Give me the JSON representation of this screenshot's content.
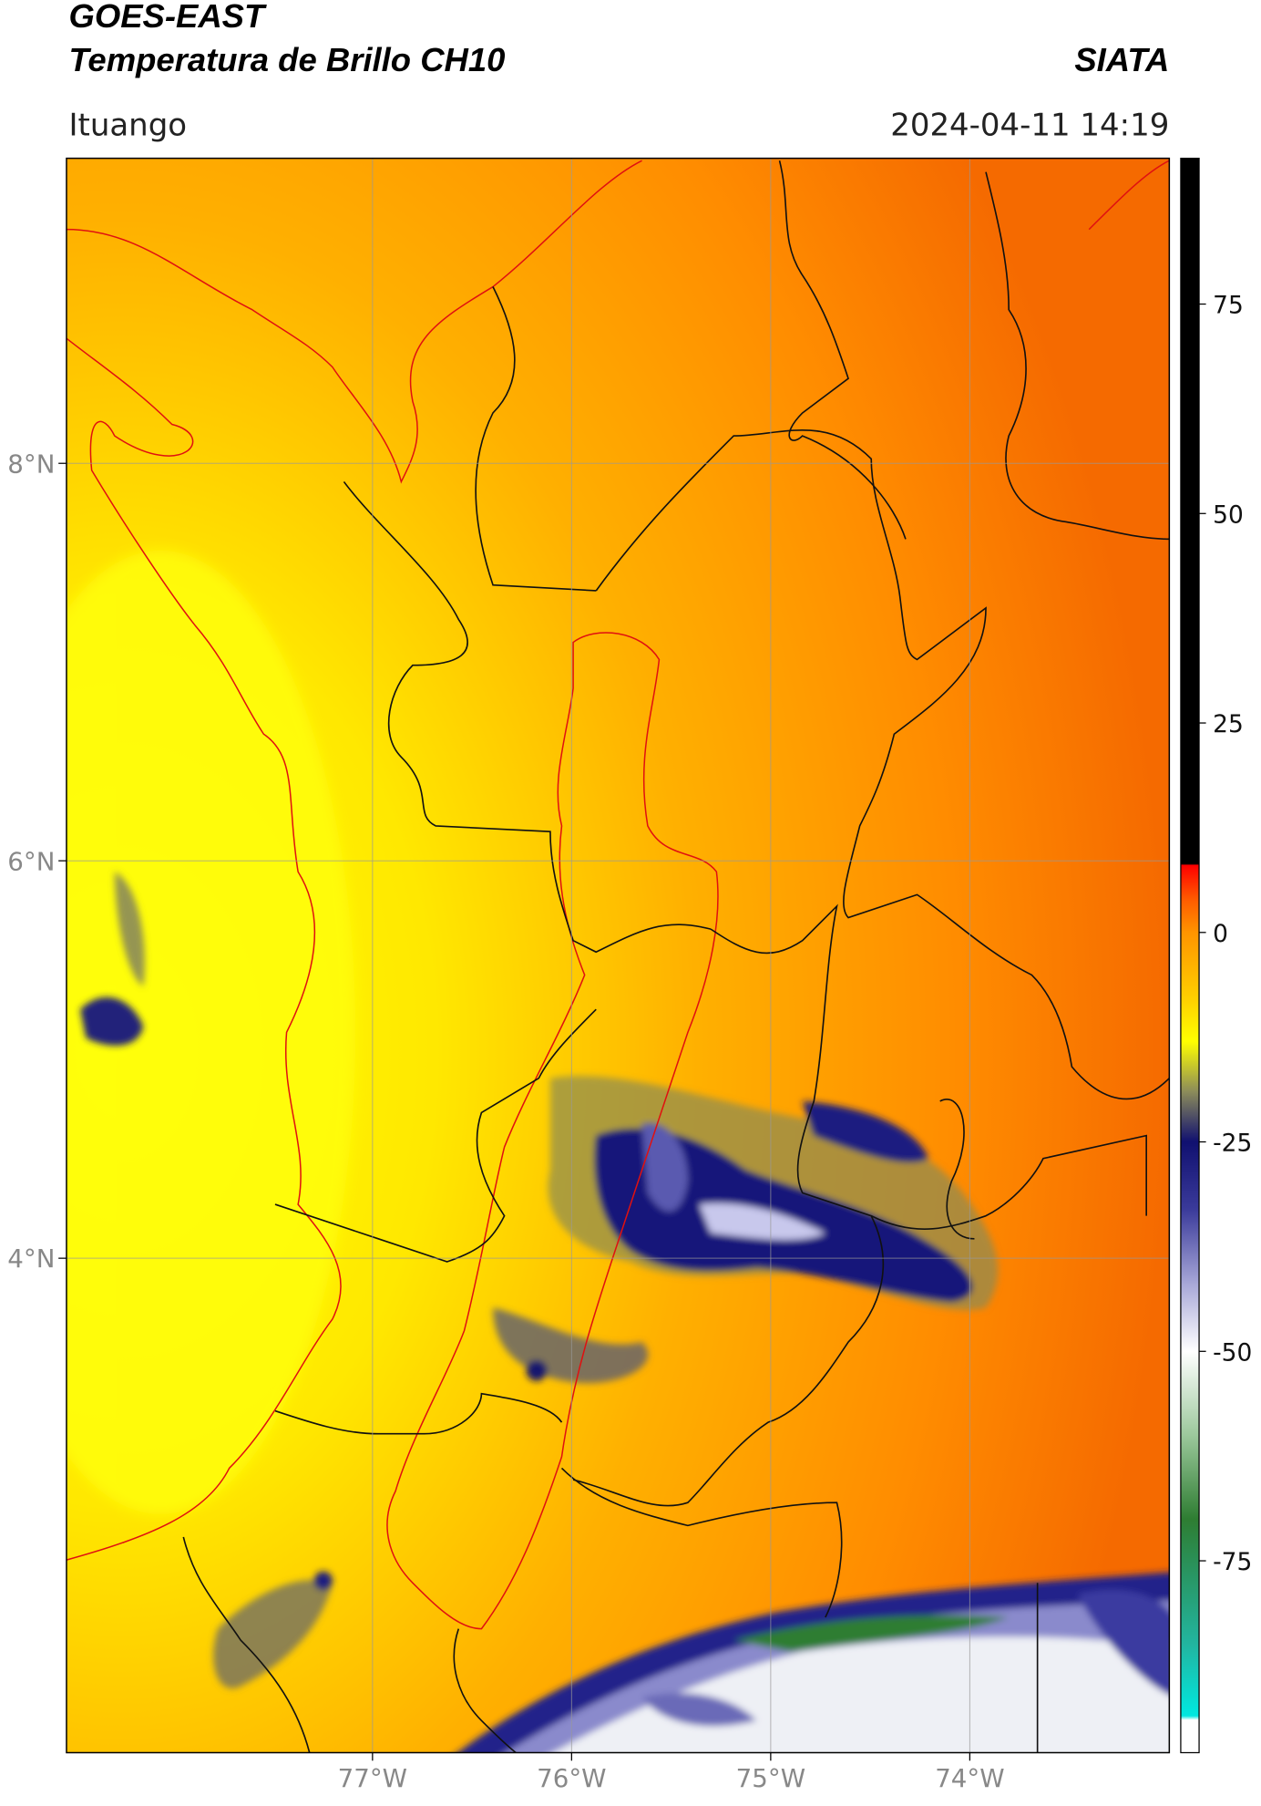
{
  "header": {
    "title": "GOES-EAST",
    "subtitle": "Temperatura de Brillo CH10",
    "source": "SIATA",
    "location": "Ituango",
    "datetime": "2024-04-11 14:19"
  },
  "map": {
    "xlim": [
      -78.537,
      -72.998
    ],
    "ylim": [
      1.512,
      9.535
    ],
    "xticks": [
      {
        "value": -77,
        "label": "77°W"
      },
      {
        "value": -76,
        "label": "76°W"
      },
      {
        "value": -75,
        "label": "75°W"
      },
      {
        "value": -74,
        "label": "74°W"
      }
    ],
    "yticks": [
      {
        "value": 4,
        "label": "4°N"
      },
      {
        "value": 6,
        "label": "6°N"
      },
      {
        "value": 8,
        "label": "8°N"
      }
    ],
    "grid": true
  },
  "colorbar": {
    "lim": [
      -97.9,
      92.4
    ],
    "ticks": [
      -75,
      -50,
      -25,
      0,
      25,
      50,
      75
    ],
    "colors": [
      {
        "value": 92.4,
        "color": "#000000"
      },
      {
        "value": 8.2,
        "color": "#000000"
      },
      {
        "value": 8,
        "color": "#ff0000"
      },
      {
        "value": 4,
        "color": "#ff5a00"
      },
      {
        "value": 0,
        "color": "#ff9400"
      },
      {
        "value": -8,
        "color": "#ffd000"
      },
      {
        "value": -13,
        "color": "#ffff00"
      },
      {
        "value": -19,
        "color": "#8c8c5a"
      },
      {
        "value": -25,
        "color": "#101070"
      },
      {
        "value": -33,
        "color": "#3a3a9a"
      },
      {
        "value": -42,
        "color": "#a8a8d8"
      },
      {
        "value": -50,
        "color": "#ffffff"
      },
      {
        "value": -60,
        "color": "#9cc89c"
      },
      {
        "value": -70,
        "color": "#2e7d32"
      },
      {
        "value": -85,
        "color": "#22b5a0"
      },
      {
        "value": -93.5,
        "color": "#00e8e0"
      },
      {
        "value": -94,
        "color": "#ffffff"
      },
      {
        "value": -97.9,
        "color": "#ffffff"
      }
    ]
  }
}
